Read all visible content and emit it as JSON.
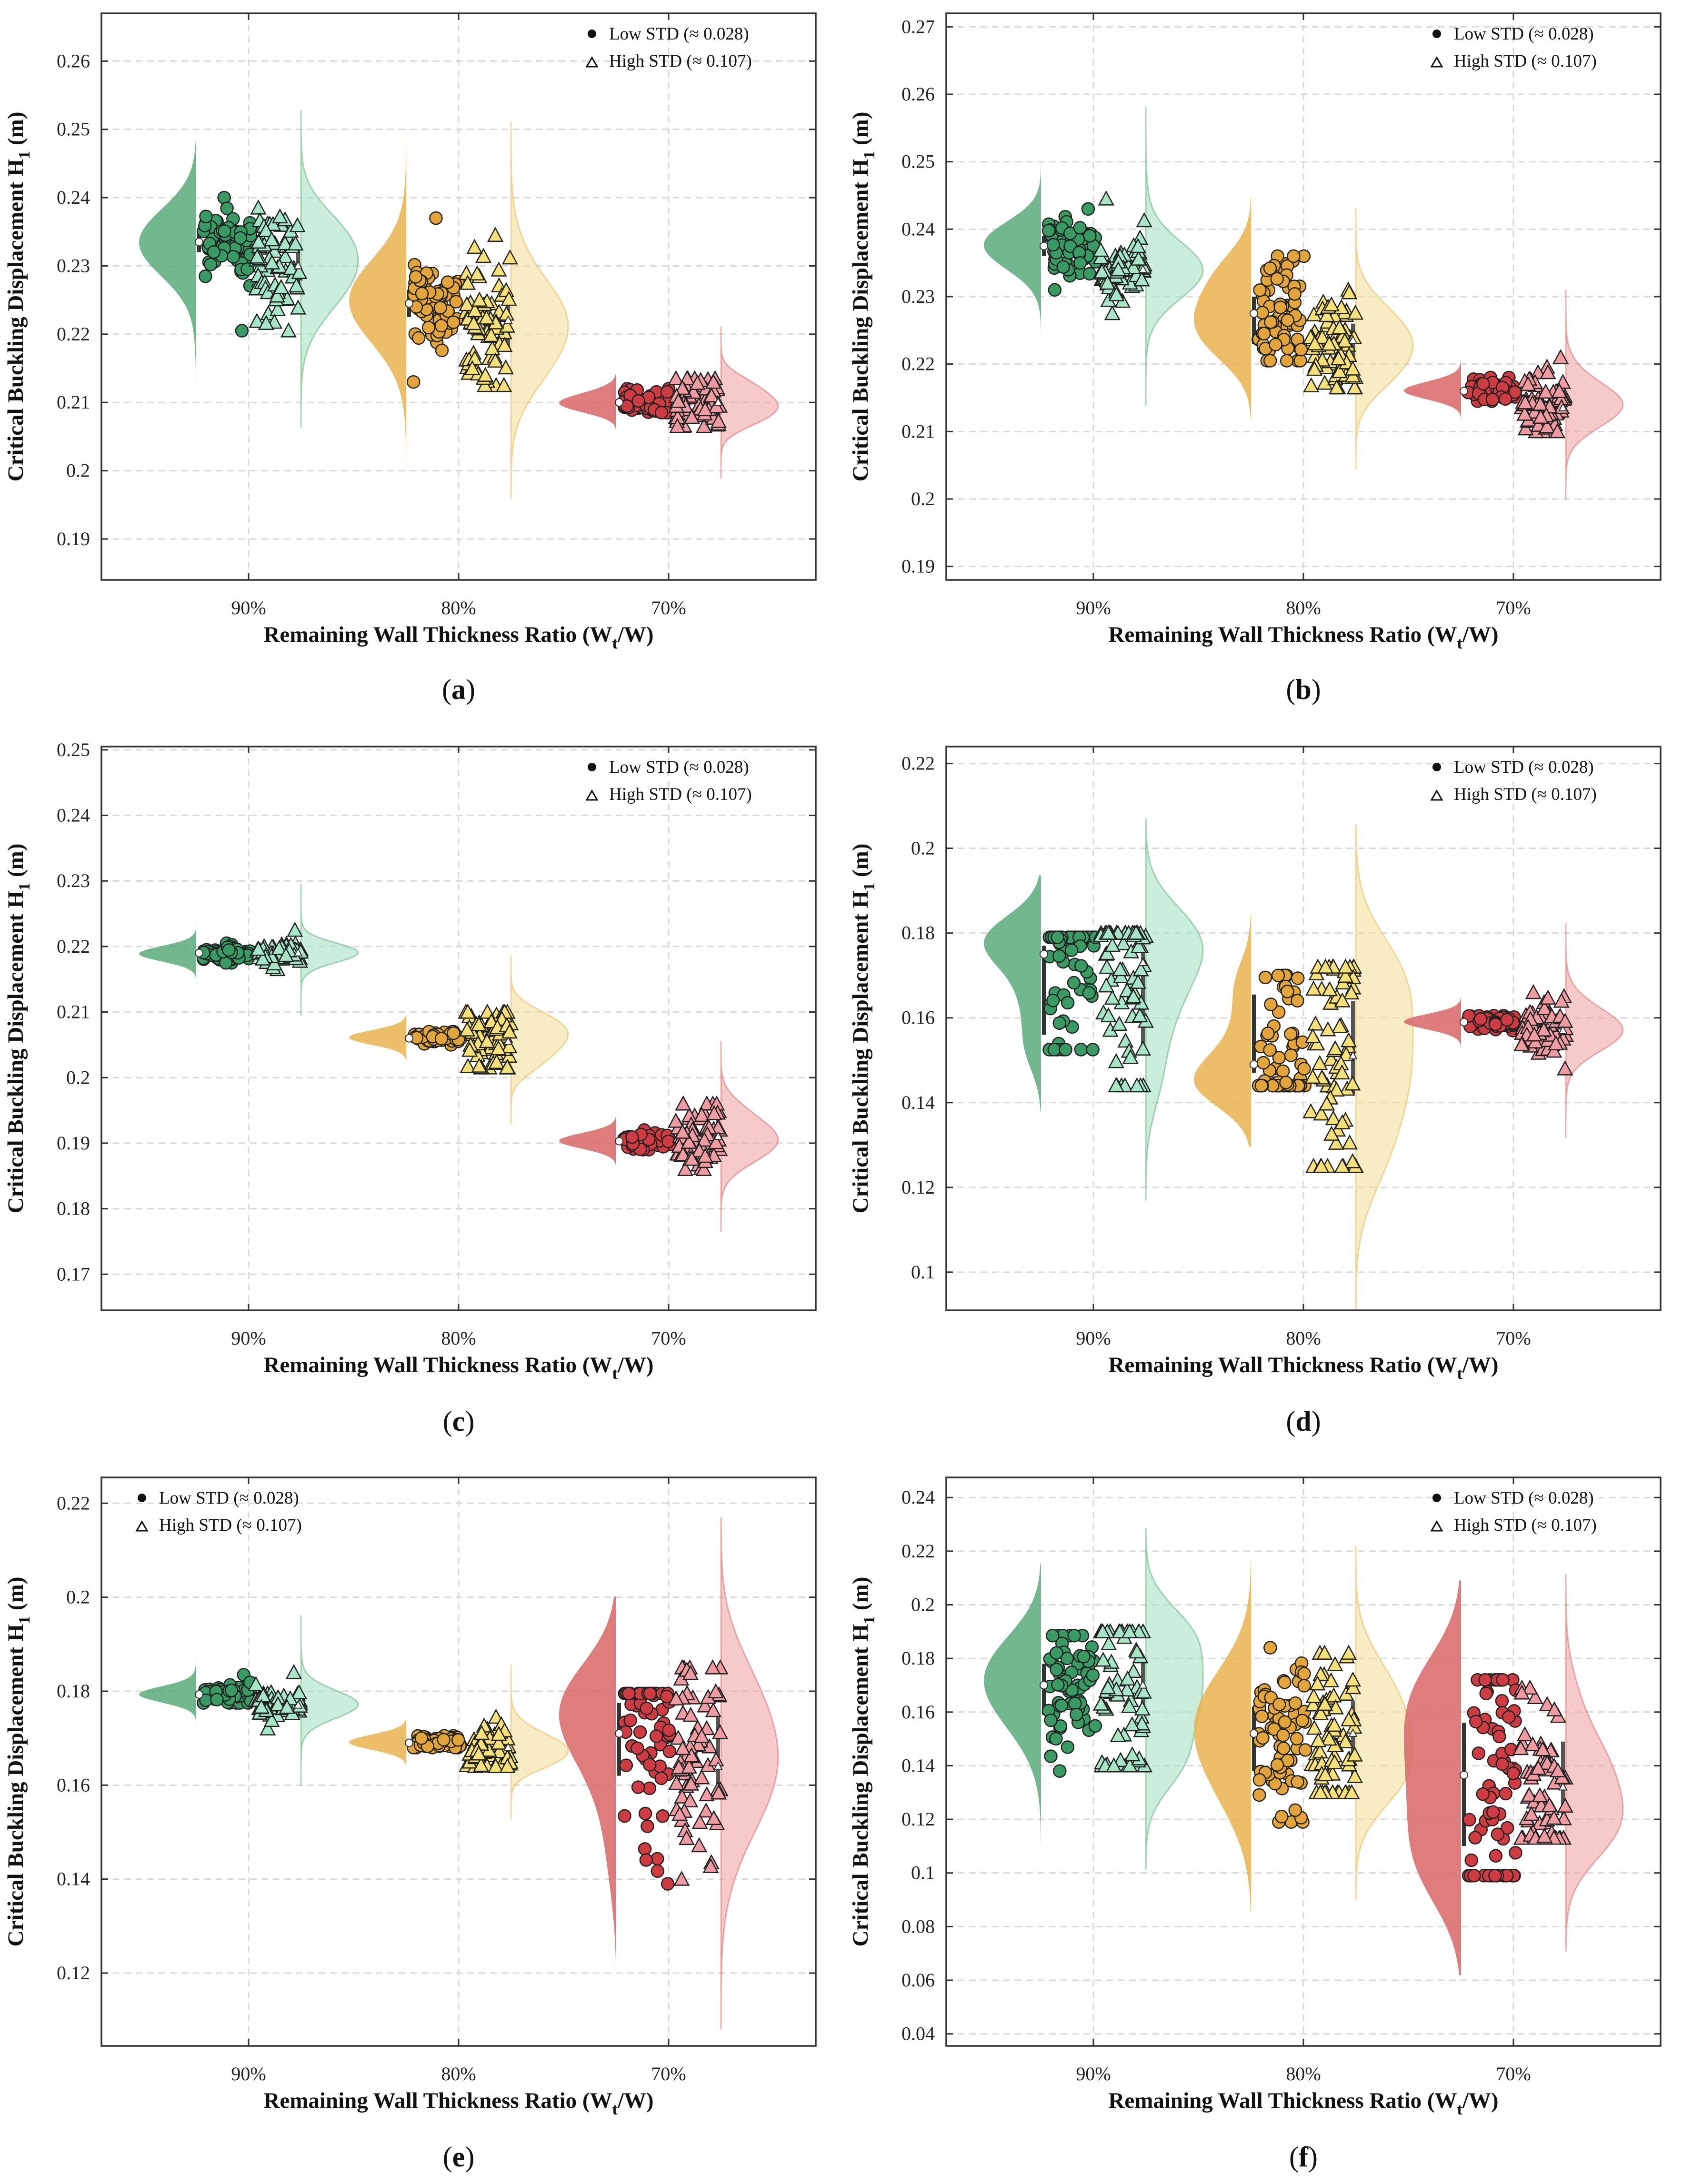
{
  "figure": {
    "panel_labels": [
      "a",
      "b",
      "c",
      "d",
      "e",
      "f"
    ]
  },
  "colors": {
    "green_dark": "#5aaa7a",
    "green_light": "#a9e2c4",
    "gold_dark": "#eab350",
    "gold_light": "#f4e09e",
    "red_dark": "#d96667",
    "red_light": "#f0a6a6",
    "point_green": "#3a9a63",
    "point_green_light": "#a6e6c6",
    "point_gold": "#e3a53b",
    "point_gold_light": "#f6e07a",
    "point_red": "#cf3b42",
    "point_red_light": "#f09aa2"
  },
  "shared": {
    "ylabel": "Critical Buckling Displacement H",
    "ylabel_sub": "1",
    "ylabel_unit": " (m)",
    "xlabel_prefix": "Remaining Wall Thickness Ratio (W",
    "xlabel_sub": "t",
    "xlabel_suffix": "/W)",
    "legend_low": "Low STD (≈ 0.028)",
    "legend_high": "High STD (≈ 0.107)",
    "categories": [
      "90%",
      "80%",
      "70%"
    ]
  },
  "chart_data": [
    {
      "type": "violin",
      "panel": "a",
      "categories": [
        "90%",
        "80%",
        "70%"
      ],
      "ylim": [
        0.184,
        0.267
      ],
      "yticks": [
        0.19,
        0.2,
        0.21,
        0.22,
        0.23,
        0.24,
        0.25,
        0.26
      ],
      "ytick_labels": [
        "0.19",
        "0.2",
        "0.21",
        "0.22",
        "0.23",
        "0.24",
        "0.25",
        "0.26"
      ],
      "grid": true,
      "legend_position": "top-right",
      "series": [
        {
          "name": "Low STD (≈ 0.028)",
          "marker": "circle",
          "median": [
            0.2335,
            0.2245,
            0.21
          ],
          "mean": [
            0.2335,
            0.2245,
            0.21
          ],
          "q1": [
            0.232,
            0.2225,
            0.2094
          ],
          "q3": [
            0.235,
            0.2265,
            0.2106
          ],
          "min": [
            0.2205,
            0.213,
            0.2085
          ],
          "max": [
            0.24,
            0.237,
            0.212
          ]
        },
        {
          "name": "High STD (≈ 0.107)",
          "marker": "triangle",
          "median": [
            0.23,
            0.222,
            0.21
          ],
          "mean": [
            0.23,
            0.222,
            0.21
          ],
          "q1": [
            0.2275,
            0.218,
            0.2085
          ],
          "q3": [
            0.233,
            0.2265,
            0.2115
          ],
          "min": [
            0.2205,
            0.2125,
            0.2065
          ],
          "max": [
            0.2385,
            0.2345,
            0.2135
          ]
        }
      ]
    },
    {
      "type": "violin",
      "panel": "b",
      "categories": [
        "90%",
        "80%",
        "70%"
      ],
      "ylim": [
        0.188,
        0.272
      ],
      "yticks": [
        0.19,
        0.2,
        0.21,
        0.22,
        0.23,
        0.24,
        0.25,
        0.26,
        0.27
      ],
      "ytick_labels": [
        "0.19",
        "0.2",
        "0.21",
        "0.22",
        "0.23",
        "0.24",
        "0.25",
        "0.26",
        "0.27"
      ],
      "grid": true,
      "legend_position": "top-right",
      "series": [
        {
          "name": "Low STD (≈ 0.028)",
          "marker": "circle",
          "median": [
            0.2375,
            0.2275,
            0.216
          ],
          "mean": [
            0.2375,
            0.2275,
            0.216
          ],
          "q1": [
            0.236,
            0.223,
            0.2155
          ],
          "q3": [
            0.239,
            0.23,
            0.2165
          ],
          "min": [
            0.231,
            0.2205,
            0.2145
          ],
          "max": [
            0.243,
            0.236,
            0.218
          ]
        },
        {
          "name": "High STD (≈ 0.107)",
          "marker": "triangle",
          "median": [
            0.234,
            0.2235,
            0.2135
          ],
          "mean": [
            0.234,
            0.2235,
            0.2135
          ],
          "q1": [
            0.2325,
            0.221,
            0.212
          ],
          "q3": [
            0.2355,
            0.226,
            0.2155
          ],
          "min": [
            0.2275,
            0.2165,
            0.21
          ],
          "max": [
            0.2445,
            0.231,
            0.221
          ]
        }
      ]
    },
    {
      "type": "violin",
      "panel": "c",
      "categories": [
        "90%",
        "80%",
        "70%"
      ],
      "ylim": [
        0.1645,
        0.2505
      ],
      "yticks": [
        0.17,
        0.18,
        0.19,
        0.2,
        0.21,
        0.22,
        0.23,
        0.24,
        0.25
      ],
      "ytick_labels": [
        "0.17",
        "0.18",
        "0.19",
        "0.2",
        "0.21",
        "0.22",
        "0.23",
        "0.24",
        "0.25"
      ],
      "grid": true,
      "legend_position": "top-right",
      "series": [
        {
          "name": "Low STD (≈ 0.028)",
          "marker": "circle",
          "median": [
            0.219,
            0.206,
            0.1903
          ],
          "mean": [
            0.219,
            0.206,
            0.1903
          ],
          "q1": [
            0.2186,
            0.2057,
            0.1899
          ],
          "q3": [
            0.2194,
            0.2063,
            0.1907
          ],
          "min": [
            0.2175,
            0.205,
            0.189
          ],
          "max": [
            0.2205,
            0.207,
            0.192
          ]
        },
        {
          "name": "High STD (≈ 0.107)",
          "marker": "triangle",
          "median": [
            0.219,
            0.2055,
            0.191
          ],
          "mean": [
            0.219,
            0.2055,
            0.191
          ],
          "q1": [
            0.2185,
            0.204,
            0.189
          ],
          "q3": [
            0.2195,
            0.2075,
            0.1935
          ],
          "min": [
            0.2165,
            0.2015,
            0.186
          ],
          "max": [
            0.2225,
            0.21,
            0.196
          ]
        }
      ]
    },
    {
      "type": "violin",
      "panel": "d",
      "categories": [
        "90%",
        "80%",
        "70%"
      ],
      "ylim": [
        0.091,
        0.224
      ],
      "yticks": [
        0.1,
        0.12,
        0.14,
        0.16,
        0.18,
        0.2,
        0.22
      ],
      "ytick_labels": [
        "0.1",
        "0.12",
        "0.14",
        "0.16",
        "0.18",
        "0.2",
        "0.22"
      ],
      "grid": true,
      "legend_position": "top-right",
      "series": [
        {
          "name": "Low STD (≈ 0.028)",
          "marker": "circle",
          "median": [
            0.175,
            0.149,
            0.159
          ],
          "mean": [
            0.165,
            0.155,
            0.159
          ],
          "q1": [
            0.156,
            0.147,
            0.1585
          ],
          "q3": [
            0.177,
            0.1655,
            0.1595
          ],
          "min": [
            0.1525,
            0.144,
            0.157
          ],
          "max": [
            0.179,
            0.17,
            0.1605
          ]
        },
        {
          "name": "High STD (≈ 0.107)",
          "marker": "triangle",
          "median": [
            0.173,
            0.151,
            0.157
          ],
          "mean": [
            0.165,
            0.152,
            0.157
          ],
          "q1": [
            0.1525,
            0.142,
            0.155
          ],
          "q3": [
            0.177,
            0.164,
            0.159
          ],
          "min": [
            0.144,
            0.125,
            0.148
          ],
          "max": [
            0.18,
            0.172,
            0.166
          ]
        }
      ]
    },
    {
      "type": "violin",
      "panel": "e",
      "categories": [
        "90%",
        "80%",
        "70%"
      ],
      "ylim": [
        0.1045,
        0.2255
      ],
      "yticks": [
        0.12,
        0.14,
        0.16,
        0.18,
        0.2,
        0.22
      ],
      "ytick_labels": [
        "0.12",
        "0.14",
        "0.16",
        "0.18",
        "0.2",
        "0.22"
      ],
      "grid": true,
      "legend_position": "top-left",
      "series": [
        {
          "name": "Low STD (≈ 0.028)",
          "marker": "circle",
          "median": [
            0.1793,
            0.169,
            0.171
          ],
          "mean": [
            0.1793,
            0.169,
            0.1685
          ],
          "q1": [
            0.1787,
            0.1686,
            0.162
          ],
          "q3": [
            0.1799,
            0.1694,
            0.1775
          ],
          "min": [
            0.1775,
            0.168,
            0.139
          ],
          "max": [
            0.1835,
            0.1705,
            0.1795
          ]
        },
        {
          "name": "High STD (≈ 0.107)",
          "marker": "triangle",
          "median": [
            0.177,
            0.168,
            0.164
          ],
          "mean": [
            0.177,
            0.168,
            0.164
          ],
          "q1": [
            0.176,
            0.1665,
            0.159
          ],
          "q3": [
            0.178,
            0.17,
            0.1745
          ],
          "min": [
            0.172,
            0.164,
            0.14
          ],
          "max": [
            0.184,
            0.1745,
            0.185
          ]
        }
      ]
    },
    {
      "type": "violin",
      "panel": "f",
      "categories": [
        "90%",
        "80%",
        "70%"
      ],
      "ylim": [
        0.0355,
        0.2475
      ],
      "yticks": [
        0.04,
        0.06,
        0.08,
        0.1,
        0.12,
        0.14,
        0.16,
        0.18,
        0.2,
        0.22,
        0.24
      ],
      "ytick_labels": [
        "0.04",
        "0.06",
        "0.08",
        "0.1",
        "0.12",
        "0.14",
        "0.16",
        "0.18",
        "0.2",
        "0.22",
        "0.24"
      ],
      "grid": true,
      "legend_position": "top-right",
      "series": [
        {
          "name": "Low STD (≈ 0.028)",
          "marker": "circle",
          "median": [
            0.17,
            0.152,
            0.1365
          ],
          "mean": [
            0.17,
            0.152,
            0.1365
          ],
          "q1": [
            0.159,
            0.138,
            0.11
          ],
          "q3": [
            0.178,
            0.162,
            0.156
          ],
          "min": [
            0.138,
            0.119,
            0.099
          ],
          "max": [
            0.1885,
            0.184,
            0.172
          ]
        },
        {
          "name": "High STD (≈ 0.107)",
          "marker": "triangle",
          "median": [
            0.17,
            0.152,
            0.132
          ],
          "mean": [
            0.17,
            0.152,
            0.132
          ],
          "q1": [
            0.152,
            0.136,
            0.12
          ],
          "q3": [
            0.18,
            0.164,
            0.149
          ],
          "min": [
            0.14,
            0.13,
            0.113
          ],
          "max": [
            0.19,
            0.182,
            0.169
          ]
        }
      ]
    }
  ]
}
